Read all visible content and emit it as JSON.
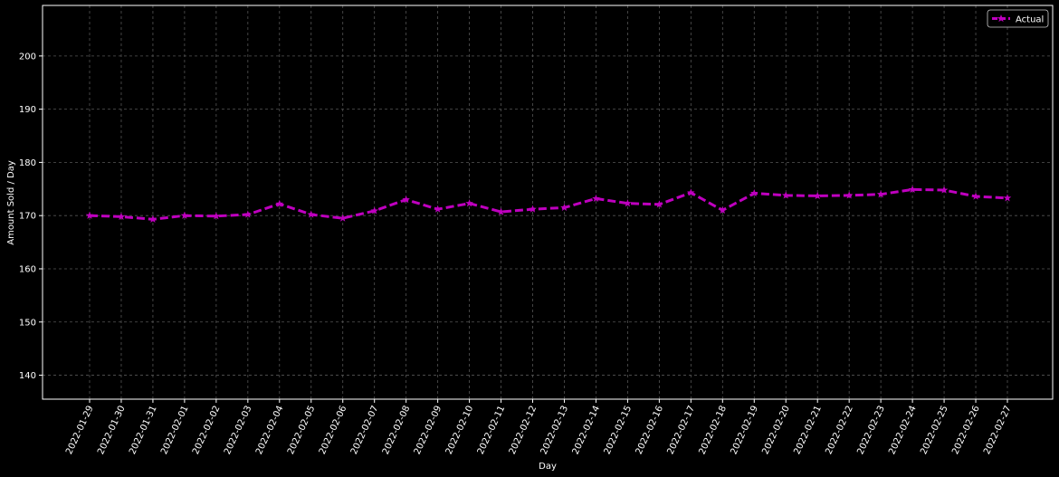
{
  "chart_data": {
    "type": "line",
    "title": "",
    "xlabel": "Day",
    "ylabel": "Amount Sold / Day",
    "ylim": [
      135.5,
      209.5
    ],
    "yticks": [
      140,
      150,
      160,
      170,
      180,
      190,
      200
    ],
    "grid": true,
    "legend_position": "top-right",
    "x": [
      "2022-01-29",
      "2022-01-30",
      "2022-01-31",
      "2022-02-01",
      "2022-02-02",
      "2022-02-03",
      "2022-02-04",
      "2022-02-05",
      "2022-02-06",
      "2022-02-07",
      "2022-02-08",
      "2022-02-09",
      "2022-02-10",
      "2022-02-11",
      "2022-02-12",
      "2022-02-13",
      "2022-02-14",
      "2022-02-15",
      "2022-02-16",
      "2022-02-17",
      "2022-02-18",
      "2022-02-19",
      "2022-02-20",
      "2022-02-21",
      "2022-02-22",
      "2022-02-23",
      "2022-02-24",
      "2022-02-25",
      "2022-02-26",
      "2022-02-27"
    ],
    "series": [
      {
        "name": "Actual",
        "color": "#bf00bf",
        "line_style": "dashed",
        "marker": "star",
        "values": [
          170.0,
          169.8,
          169.3,
          170.0,
          169.9,
          170.2,
          172.2,
          170.2,
          169.5,
          170.9,
          173.0,
          171.2,
          172.3,
          170.7,
          171.2,
          171.5,
          173.2,
          172.3,
          172.1,
          174.3,
          171.0,
          174.2,
          173.8,
          173.7,
          173.8,
          174.0,
          174.9,
          174.8,
          173.6,
          173.3
        ]
      }
    ]
  },
  "colors": {
    "background": "#000000",
    "axes_frame": "#ffffff",
    "grid": "#555555",
    "text": "#ffffff"
  }
}
